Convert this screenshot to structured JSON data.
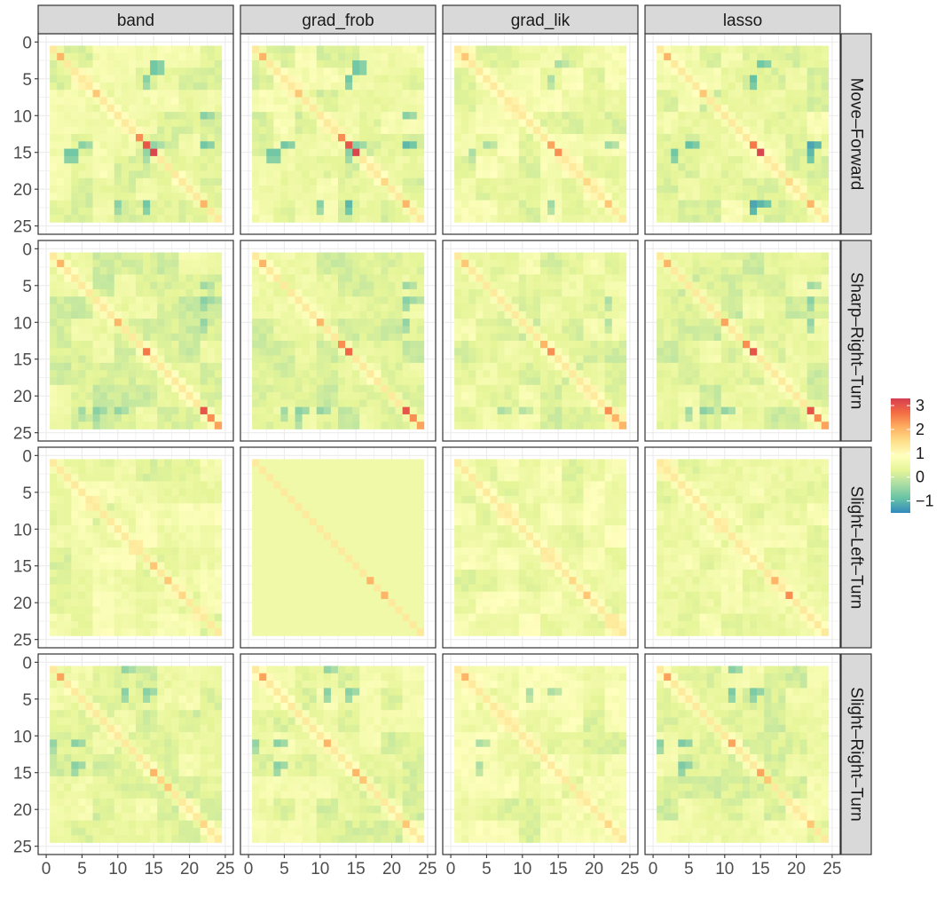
{
  "chart_data": {
    "type": "heatmap",
    "title": "",
    "xlabel": "",
    "ylabel": "",
    "facet_columns": [
      "band",
      "grad_frob",
      "grad_lik",
      "lasso"
    ],
    "facet_rows": [
      "Move–Forward",
      "Sharp–Right–Turn",
      "Slight–Left–Turn",
      "Slight–Right–Turn"
    ],
    "matrix_size": 24,
    "xlim": [
      0,
      25
    ],
    "ylim": [
      0,
      25
    ],
    "y_reversed": true,
    "x_ticks": [
      0,
      5,
      10,
      15,
      20,
      25
    ],
    "y_ticks": [
      0,
      5,
      10,
      15,
      20,
      25
    ],
    "x_tick_labels": [
      "0",
      "5",
      "10",
      "15",
      "20",
      "25"
    ],
    "y_tick_labels": [
      "0",
      "5",
      "10",
      "15",
      "20",
      "25"
    ],
    "grid": true,
    "legend": {
      "position": "right",
      "limits": [
        -1.5,
        3.3
      ],
      "ticks": [
        3,
        2,
        1,
        0,
        -1
      ],
      "tick_labels": [
        "3",
        "2",
        "1",
        "0",
        "−1"
      ],
      "colors": [
        "#3288BD",
        "#66C2A5",
        "#ABDDA4",
        "#E6F598",
        "#FFFFBF",
        "#FEE08B",
        "#FDAE61",
        "#F46D43",
        "#D53E4F"
      ]
    },
    "panels": [
      {
        "row": "Move–Forward",
        "col": "band",
        "diagonal_peaks": {
          "2": 2.0,
          "7": 1.8,
          "13": 2.4,
          "14": 3.0,
          "15": 3.2,
          "22": 2.0
        },
        "strong_negatives": [
          [
            15,
            3,
            -0.8
          ],
          [
            15,
            4,
            -0.8
          ],
          [
            22,
            10,
            -0.6
          ],
          [
            22,
            14,
            -0.8
          ],
          [
            5,
            14,
            -0.6
          ],
          [
            15,
            14,
            -0.5
          ]
        ],
        "baseline": 0.4
      },
      {
        "row": "Move–Forward",
        "col": "grad_frob",
        "diagonal_peaks": {
          "2": 2.0,
          "7": 1.8,
          "13": 2.4,
          "14": 3.0,
          "15": 3.2,
          "19": 1.6,
          "22": 2.0
        },
        "strong_negatives": [
          [
            15,
            3,
            -0.8
          ],
          [
            15,
            4,
            -0.8
          ],
          [
            22,
            10,
            -0.6
          ],
          [
            22,
            14,
            -1.0
          ],
          [
            5,
            14,
            -0.8
          ],
          [
            15,
            14,
            -0.6
          ]
        ],
        "baseline": 0.4
      },
      {
        "row": "Move–Forward",
        "col": "grad_lik",
        "diagonal_peaks": {
          "2": 1.8,
          "14": 2.2,
          "15": 2.4,
          "19": 1.6,
          "22": 1.8
        },
        "strong_negatives": [
          [
            15,
            3,
            -0.3
          ],
          [
            22,
            14,
            -0.4
          ],
          [
            5,
            14,
            -0.3
          ]
        ],
        "baseline": 0.5
      },
      {
        "row": "Move–Forward",
        "col": "lasso",
        "diagonal_peaks": {
          "2": 2.0,
          "7": 1.8,
          "14": 2.6,
          "15": 3.2,
          "19": 1.6,
          "22": 2.0
        },
        "strong_negatives": [
          [
            15,
            3,
            -0.8
          ],
          [
            22,
            14,
            -1.2
          ],
          [
            5,
            14,
            -0.9
          ],
          [
            15,
            22,
            -1.0
          ]
        ],
        "baseline": 0.4
      },
      {
        "row": "Sharp–Right–Turn",
        "col": "band",
        "diagonal_peaks": {
          "2": 2.0,
          "10": 2.0,
          "14": 2.6,
          "22": 3.0,
          "23": 2.4,
          "24": 2.2
        },
        "strong_negatives": [
          [
            7,
            22,
            -0.6
          ],
          [
            10,
            22,
            -0.5
          ],
          [
            22,
            5,
            -0.4
          ],
          [
            23,
            7,
            -0.4
          ]
        ],
        "baseline": 0.3
      },
      {
        "row": "Sharp–Right–Turn",
        "col": "grad_frob",
        "diagonal_peaks": {
          "2": 2.0,
          "10": 2.0,
          "13": 2.4,
          "14": 2.8,
          "22": 3.0,
          "23": 2.4,
          "24": 2.2
        },
        "strong_negatives": [
          [
            7,
            22,
            -0.6
          ],
          [
            10,
            22,
            -0.5
          ],
          [
            22,
            5,
            -0.4
          ],
          [
            23,
            7,
            -0.4
          ]
        ],
        "baseline": 0.3
      },
      {
        "row": "Sharp–Right–Turn",
        "col": "grad_lik",
        "diagonal_peaks": {
          "2": 1.8,
          "13": 2.0,
          "14": 2.4,
          "22": 2.4,
          "23": 2.0,
          "24": 2.0
        },
        "strong_negatives": [
          [
            7,
            22,
            -0.3
          ],
          [
            10,
            22,
            -0.2
          ]
        ],
        "baseline": 0.4
      },
      {
        "row": "Sharp–Right–Turn",
        "col": "lasso",
        "diagonal_peaks": {
          "2": 2.0,
          "10": 2.2,
          "13": 2.4,
          "14": 3.0,
          "22": 3.0,
          "23": 2.4,
          "24": 2.2
        },
        "strong_negatives": [
          [
            7,
            22,
            -0.6
          ],
          [
            10,
            22,
            -0.5
          ],
          [
            22,
            5,
            -0.4
          ]
        ],
        "baseline": 0.3
      },
      {
        "row": "Slight–Left–Turn",
        "col": "band",
        "diagonal_peaks": {
          "15": 1.8,
          "17": 1.8,
          "19": 1.6
        },
        "strong_negatives": [],
        "baseline": 0.5
      },
      {
        "row": "Slight–Left–Turn",
        "col": "grad_frob",
        "diagonal_peaks": {
          "17": 2.0,
          "19": 2.0
        },
        "strong_negatives": [],
        "baseline": 0.55
      },
      {
        "row": "Slight–Left–Turn",
        "col": "grad_lik",
        "diagonal_peaks": {
          "17": 1.6,
          "19": 1.8
        },
        "strong_negatives": [],
        "baseline": 0.55
      },
      {
        "row": "Slight–Left–Turn",
        "col": "lasso",
        "diagonal_peaks": {
          "17": 2.0,
          "19": 2.4
        },
        "strong_negatives": [],
        "baseline": 0.5
      },
      {
        "row": "Slight–Right–Turn",
        "col": "band",
        "diagonal_peaks": {
          "2": 2.2,
          "15": 2.0,
          "16": 1.6,
          "17": 1.8,
          "22": 1.6
        },
        "strong_negatives": [
          [
            4,
            11,
            -0.6
          ],
          [
            4,
            14,
            -0.6
          ],
          [
            14,
            4,
            -0.6
          ],
          [
            11,
            1,
            -0.5
          ]
        ],
        "baseline": 0.4
      },
      {
        "row": "Slight–Right–Turn",
        "col": "grad_frob",
        "diagonal_peaks": {
          "2": 2.2,
          "11": 2.0,
          "15": 2.0,
          "16": 1.8,
          "22": 1.8
        },
        "strong_negatives": [
          [
            4,
            11,
            -0.6
          ],
          [
            4,
            14,
            -0.6
          ],
          [
            14,
            4,
            -0.6
          ],
          [
            11,
            1,
            -0.5
          ]
        ],
        "baseline": 0.4
      },
      {
        "row": "Slight–Right–Turn",
        "col": "grad_lik",
        "diagonal_peaks": {
          "2": 2.0,
          "22": 1.6
        },
        "strong_negatives": [
          [
            4,
            11,
            -0.3
          ],
          [
            14,
            4,
            -0.3
          ]
        ],
        "baseline": 0.5
      },
      {
        "row": "Slight–Right–Turn",
        "col": "lasso",
        "diagonal_peaks": {
          "2": 2.2,
          "11": 2.2,
          "15": 2.2,
          "16": 1.8,
          "22": 1.8
        },
        "strong_negatives": [
          [
            4,
            11,
            -0.7
          ],
          [
            4,
            14,
            -0.7
          ],
          [
            14,
            4,
            -0.7
          ],
          [
            11,
            1,
            -0.6
          ]
        ],
        "baseline": 0.4
      }
    ]
  }
}
